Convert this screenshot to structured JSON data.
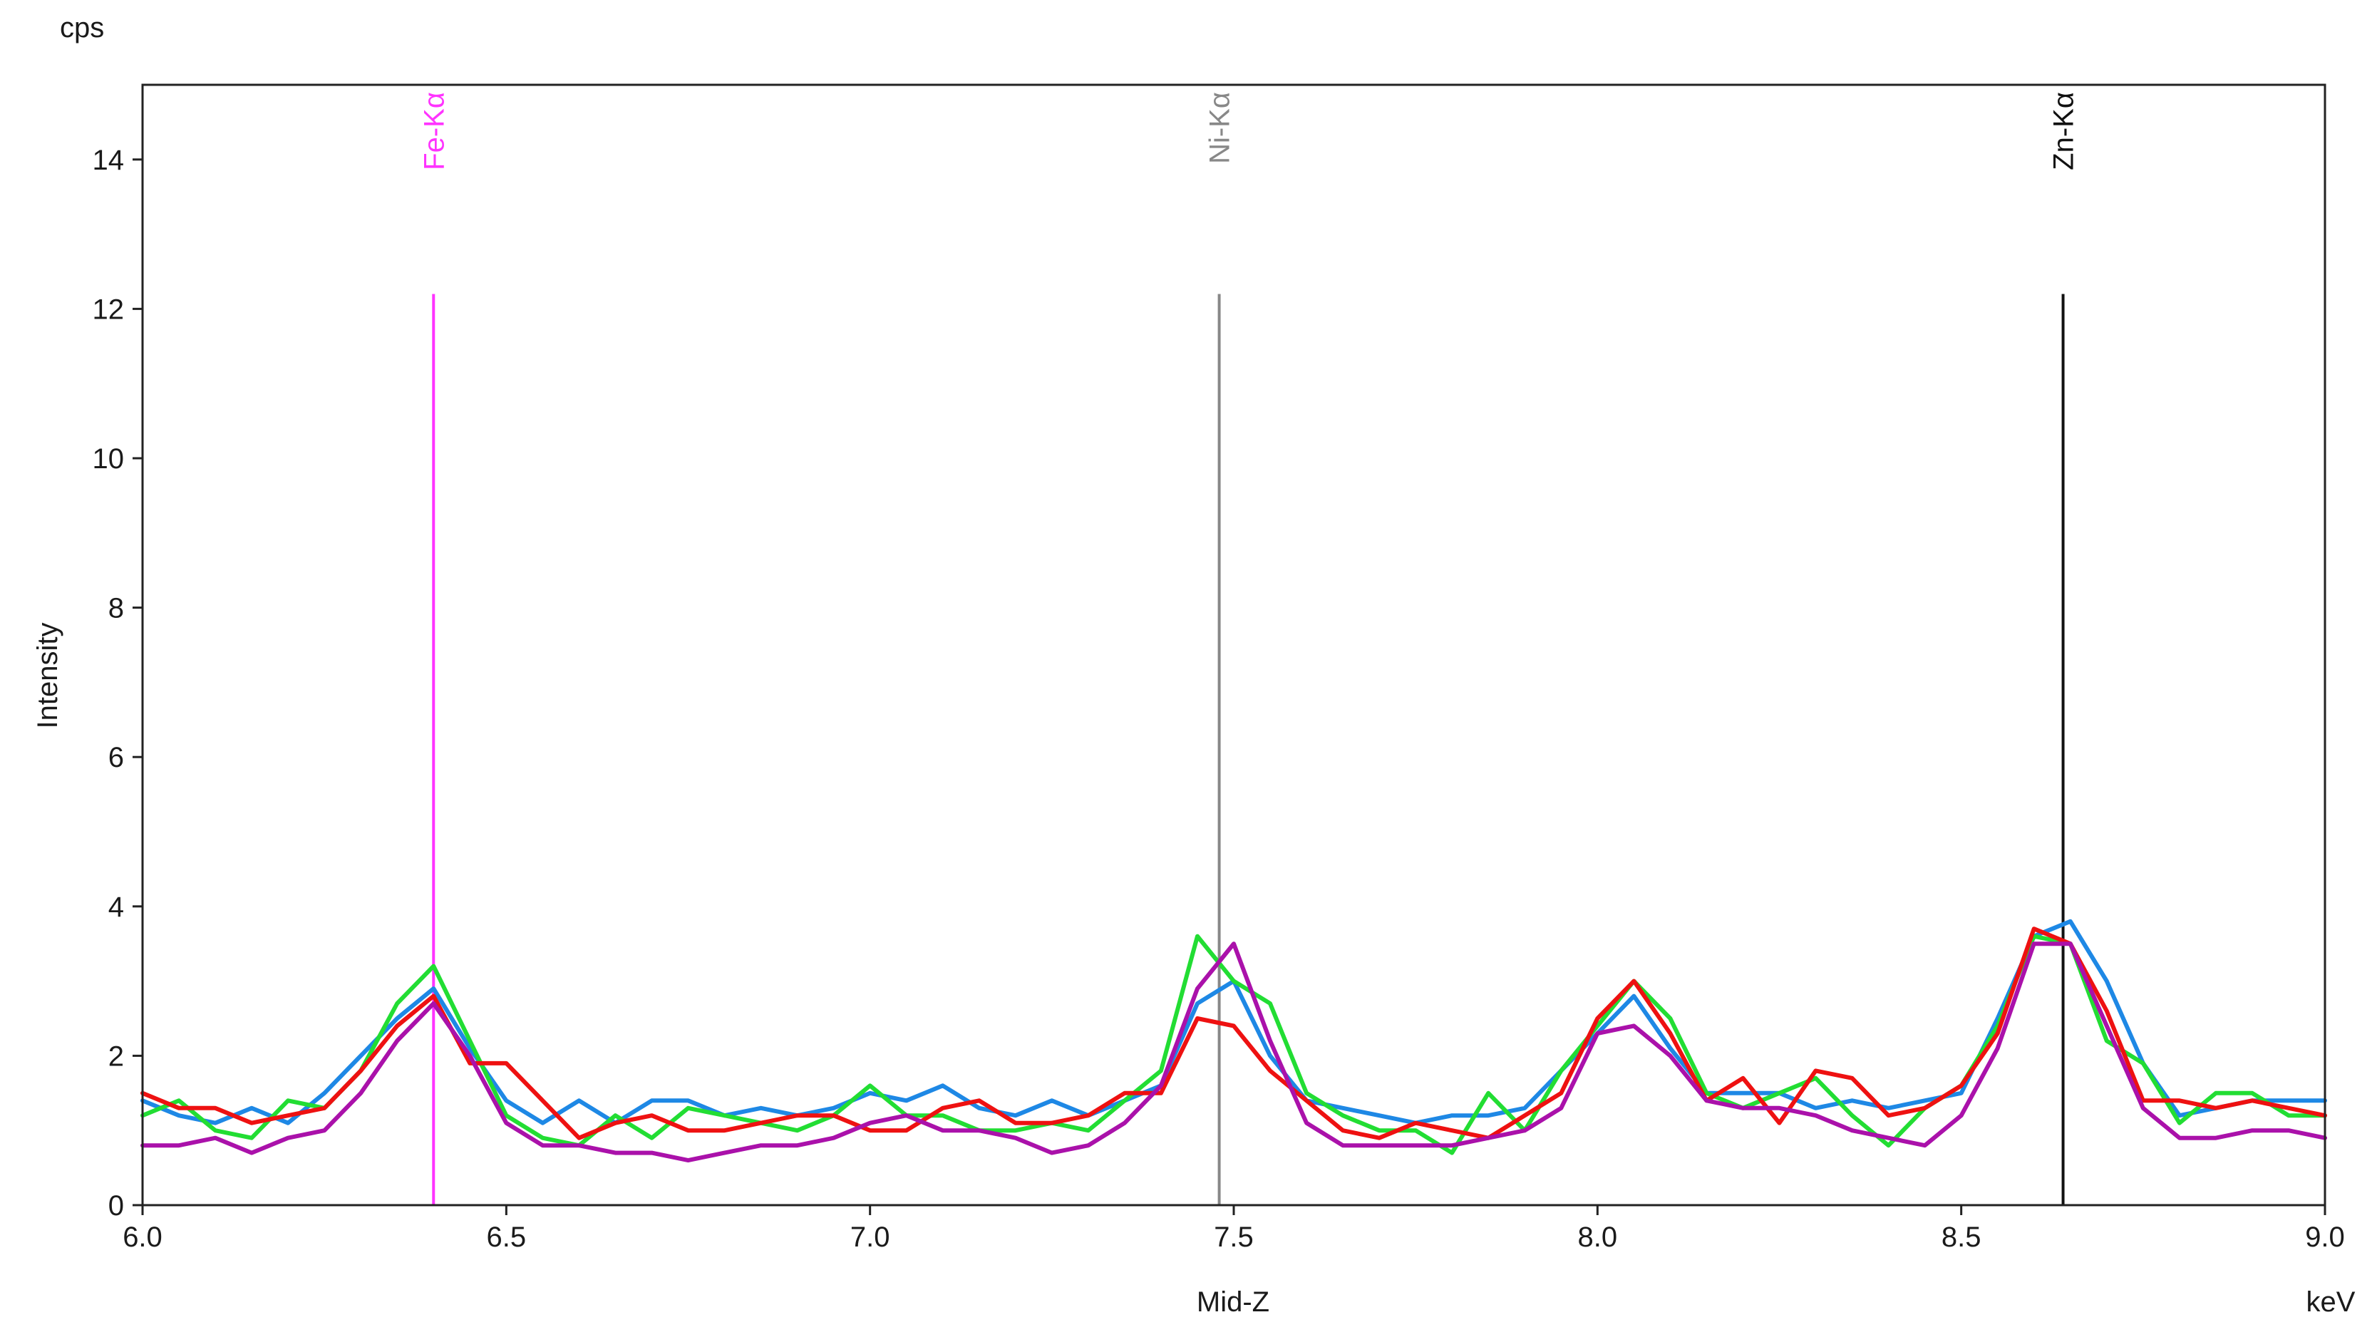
{
  "chart_data": {
    "type": "line",
    "y_unit_label": "cps",
    "ylabel": "Intensity",
    "xlabel": "Mid-Z",
    "x_unit_label": "keV",
    "xlim": [
      6.0,
      9.0
    ],
    "ylim": [
      0,
      15
    ],
    "x_ticks": [
      6.0,
      6.5,
      7.0,
      7.5,
      8.0,
      8.5,
      9.0
    ],
    "x_tick_labels": [
      "6.0",
      "6.5",
      "7.0",
      "7.5",
      "8.0",
      "8.5",
      "9.0"
    ],
    "y_ticks": [
      0,
      2,
      4,
      6,
      8,
      10,
      12,
      14
    ],
    "y_tick_labels": [
      "0",
      "2",
      "4",
      "6",
      "8",
      "10",
      "12",
      "14"
    ],
    "grid": false,
    "markers": [
      {
        "label": "Fe-Kα",
        "x": 6.4,
        "height": 12.2,
        "color": "#ff33ff"
      },
      {
        "label": "Ni-Kα",
        "x": 7.48,
        "height": 12.2,
        "color": "#888888"
      },
      {
        "label": "Zn-Kα",
        "x": 8.64,
        "height": 12.2,
        "color": "#111111"
      }
    ],
    "series": [
      {
        "color": "#1e88e5",
        "x": [
          6.0,
          6.05,
          6.1,
          6.15,
          6.2,
          6.25,
          6.3,
          6.35,
          6.4,
          6.45,
          6.5,
          6.55,
          6.6,
          6.65,
          6.7,
          6.75,
          6.8,
          6.85,
          6.9,
          6.95,
          7.0,
          7.05,
          7.1,
          7.15,
          7.2,
          7.25,
          7.3,
          7.35,
          7.4,
          7.45,
          7.5,
          7.55,
          7.6,
          7.65,
          7.7,
          7.75,
          7.8,
          7.85,
          7.9,
          7.95,
          8.0,
          8.05,
          8.1,
          8.15,
          8.2,
          8.25,
          8.3,
          8.35,
          8.4,
          8.45,
          8.5,
          8.55,
          8.6,
          8.65,
          8.7,
          8.75,
          8.8,
          8.85,
          8.9,
          8.95,
          9.0
        ],
        "values": [
          1.4,
          1.2,
          1.1,
          1.3,
          1.1,
          1.5,
          2.0,
          2.5,
          2.9,
          2.1,
          1.4,
          1.1,
          1.4,
          1.1,
          1.4,
          1.4,
          1.2,
          1.3,
          1.2,
          1.3,
          1.5,
          1.4,
          1.6,
          1.3,
          1.2,
          1.4,
          1.2,
          1.4,
          1.6,
          2.7,
          3.0,
          2.0,
          1.4,
          1.3,
          1.2,
          1.1,
          1.2,
          1.2,
          1.3,
          1.8,
          2.3,
          2.8,
          2.1,
          1.5,
          1.5,
          1.5,
          1.3,
          1.4,
          1.3,
          1.4,
          1.5,
          2.5,
          3.6,
          3.8,
          3.0,
          1.9,
          1.2,
          1.3,
          1.4,
          1.4,
          1.4
        ]
      },
      {
        "color": "#22dd33",
        "x": [
          6.0,
          6.05,
          6.1,
          6.15,
          6.2,
          6.25,
          6.3,
          6.35,
          6.4,
          6.45,
          6.5,
          6.55,
          6.6,
          6.65,
          6.7,
          6.75,
          6.8,
          6.85,
          6.9,
          6.95,
          7.0,
          7.05,
          7.1,
          7.15,
          7.2,
          7.25,
          7.3,
          7.35,
          7.4,
          7.45,
          7.5,
          7.55,
          7.6,
          7.65,
          7.7,
          7.75,
          7.8,
          7.85,
          7.9,
          7.95,
          8.0,
          8.05,
          8.1,
          8.15,
          8.2,
          8.25,
          8.3,
          8.35,
          8.4,
          8.45,
          8.5,
          8.55,
          8.6,
          8.65,
          8.7,
          8.75,
          8.8,
          8.85,
          8.9,
          8.95,
          9.0
        ],
        "values": [
          1.2,
          1.4,
          1.0,
          0.9,
          1.4,
          1.3,
          1.8,
          2.7,
          3.2,
          2.2,
          1.2,
          0.9,
          0.8,
          1.2,
          0.9,
          1.3,
          1.2,
          1.1,
          1.0,
          1.2,
          1.6,
          1.2,
          1.2,
          1.0,
          1.0,
          1.1,
          1.0,
          1.4,
          1.8,
          3.6,
          3.0,
          2.7,
          1.5,
          1.2,
          1.0,
          1.0,
          0.7,
          1.5,
          1.0,
          1.8,
          2.4,
          3.0,
          2.5,
          1.5,
          1.3,
          1.5,
          1.7,
          1.2,
          0.8,
          1.3,
          1.6,
          2.4,
          3.6,
          3.5,
          2.2,
          1.9,
          1.1,
          1.5,
          1.5,
          1.2,
          1.2
        ]
      },
      {
        "color": "#ee1111",
        "x": [
          6.0,
          6.05,
          6.1,
          6.15,
          6.2,
          6.25,
          6.3,
          6.35,
          6.4,
          6.45,
          6.5,
          6.55,
          6.6,
          6.65,
          6.7,
          6.75,
          6.8,
          6.85,
          6.9,
          6.95,
          7.0,
          7.05,
          7.1,
          7.15,
          7.2,
          7.25,
          7.3,
          7.35,
          7.4,
          7.45,
          7.5,
          7.55,
          7.6,
          7.65,
          7.7,
          7.75,
          7.8,
          7.85,
          7.9,
          7.95,
          8.0,
          8.05,
          8.1,
          8.15,
          8.2,
          8.25,
          8.3,
          8.35,
          8.4,
          8.45,
          8.5,
          8.55,
          8.6,
          8.65,
          8.7,
          8.75,
          8.8,
          8.85,
          8.9,
          8.95,
          9.0
        ],
        "values": [
          1.5,
          1.3,
          1.3,
          1.1,
          1.2,
          1.3,
          1.8,
          2.4,
          2.8,
          1.9,
          1.9,
          1.4,
          0.9,
          1.1,
          1.2,
          1.0,
          1.0,
          1.1,
          1.2,
          1.2,
          1.0,
          1.0,
          1.3,
          1.4,
          1.1,
          1.1,
          1.2,
          1.5,
          1.5,
          2.5,
          2.4,
          1.8,
          1.4,
          1.0,
          0.9,
          1.1,
          1.0,
          0.9,
          1.2,
          1.5,
          2.5,
          3.0,
          2.3,
          1.4,
          1.7,
          1.1,
          1.8,
          1.7,
          1.2,
          1.3,
          1.6,
          2.3,
          3.7,
          3.5,
          2.6,
          1.4,
          1.4,
          1.3,
          1.4,
          1.3,
          1.2
        ]
      },
      {
        "color": "#aa11aa",
        "x": [
          6.0,
          6.05,
          6.1,
          6.15,
          6.2,
          6.25,
          6.3,
          6.35,
          6.4,
          6.45,
          6.5,
          6.55,
          6.6,
          6.65,
          6.7,
          6.75,
          6.8,
          6.85,
          6.9,
          6.95,
          7.0,
          7.05,
          7.1,
          7.15,
          7.2,
          7.25,
          7.3,
          7.35,
          7.4,
          7.45,
          7.5,
          7.55,
          7.6,
          7.65,
          7.7,
          7.75,
          7.8,
          7.85,
          7.9,
          7.95,
          8.0,
          8.05,
          8.1,
          8.15,
          8.2,
          8.25,
          8.3,
          8.35,
          8.4,
          8.45,
          8.5,
          8.55,
          8.6,
          8.65,
          8.7,
          8.75,
          8.8,
          8.85,
          8.9,
          8.95,
          9.0
        ],
        "values": [
          0.8,
          0.8,
          0.9,
          0.7,
          0.9,
          1.0,
          1.5,
          2.2,
          2.7,
          2.0,
          1.1,
          0.8,
          0.8,
          0.7,
          0.7,
          0.6,
          0.7,
          0.8,
          0.8,
          0.9,
          1.1,
          1.2,
          1.0,
          1.0,
          0.9,
          0.7,
          0.8,
          1.1,
          1.6,
          2.9,
          3.5,
          2.2,
          1.1,
          0.8,
          0.8,
          0.8,
          0.8,
          0.9,
          1.0,
          1.3,
          2.3,
          2.4,
          2.0,
          1.4,
          1.3,
          1.3,
          1.2,
          1.0,
          0.9,
          0.8,
          1.2,
          2.1,
          3.5,
          3.5,
          2.4,
          1.3,
          0.9,
          0.9,
          1.0,
          1.0,
          0.9
        ]
      }
    ]
  }
}
